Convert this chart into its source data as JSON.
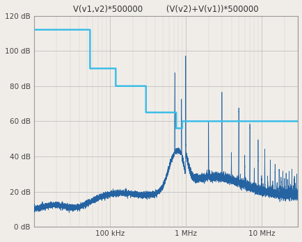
{
  "title1": "V(v1,v2)*500000",
  "title2": "(V(v2)+V(v1))*500000",
  "xlabel_ticks": [
    "100 kHz",
    "1 MHz",
    "10 MHz"
  ],
  "ylabel_ticks": [
    "0 dB",
    "20 dB",
    "40 dB",
    "60 dB",
    "80 dB",
    "100 dB",
    "120 dB"
  ],
  "xlim_log": [
    10000,
    30000000
  ],
  "ylim": [
    0,
    120
  ],
  "bg_color": "#f0ede8",
  "grid_color": "#bbbbbb",
  "line1_color": "#1a5c9e",
  "step_color": "#3bbde8",
  "step_points_f": [
    10000,
    55000,
    55001,
    120000,
    120001,
    300000,
    300001,
    750000,
    750002,
    900000,
    900001,
    2200000,
    2200001,
    30000000
  ],
  "step_points_v": [
    112,
    112,
    90,
    90,
    80,
    80,
    65,
    65,
    56,
    56,
    60,
    60,
    60,
    60
  ],
  "noise_floor": 10,
  "sw_freq": 1000000
}
